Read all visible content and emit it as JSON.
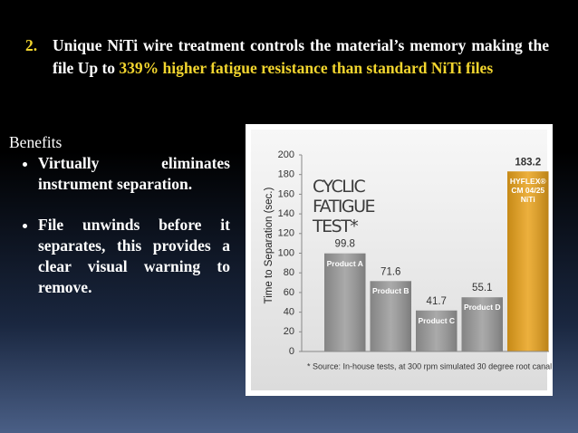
{
  "slide": {
    "heading": {
      "number": "2.",
      "segments": [
        {
          "text": "Unique NiTi wire treatment controls the material’s memory making the file Up to ",
          "highlight": false
        },
        {
          "text": "339% higher fatigue resistance than standard NiTi files",
          "highlight": true
        }
      ]
    },
    "benefits": {
      "title": "Benefits",
      "items": [
        "Virtually eliminates instrument separation.",
        "File unwinds before it separates, this provides a clear visual warning to remove."
      ]
    }
  },
  "chart_data": {
    "type": "bar",
    "title": "CYCLIC FATIGUE TEST*",
    "y_label": "Time to Separation (sec.)",
    "categories": [
      "Product A",
      "Product B",
      "Product C",
      "Product D",
      "HYFLEX® CM 04/25 NiTi"
    ],
    "values": [
      99.8,
      71.6,
      41.7,
      55.1,
      183.2
    ],
    "colors": [
      "#9b9b9b",
      "#9b9b9b",
      "#9b9b9b",
      "#9b9b9b",
      "#e9a21b"
    ],
    "ylim": [
      0,
      200
    ],
    "yticks": [
      0,
      20,
      40,
      60,
      80,
      100,
      120,
      140,
      160,
      180,
      200
    ],
    "note": "* Source: In-house tests, at 300 rpm simulated 30 degree root canal"
  }
}
